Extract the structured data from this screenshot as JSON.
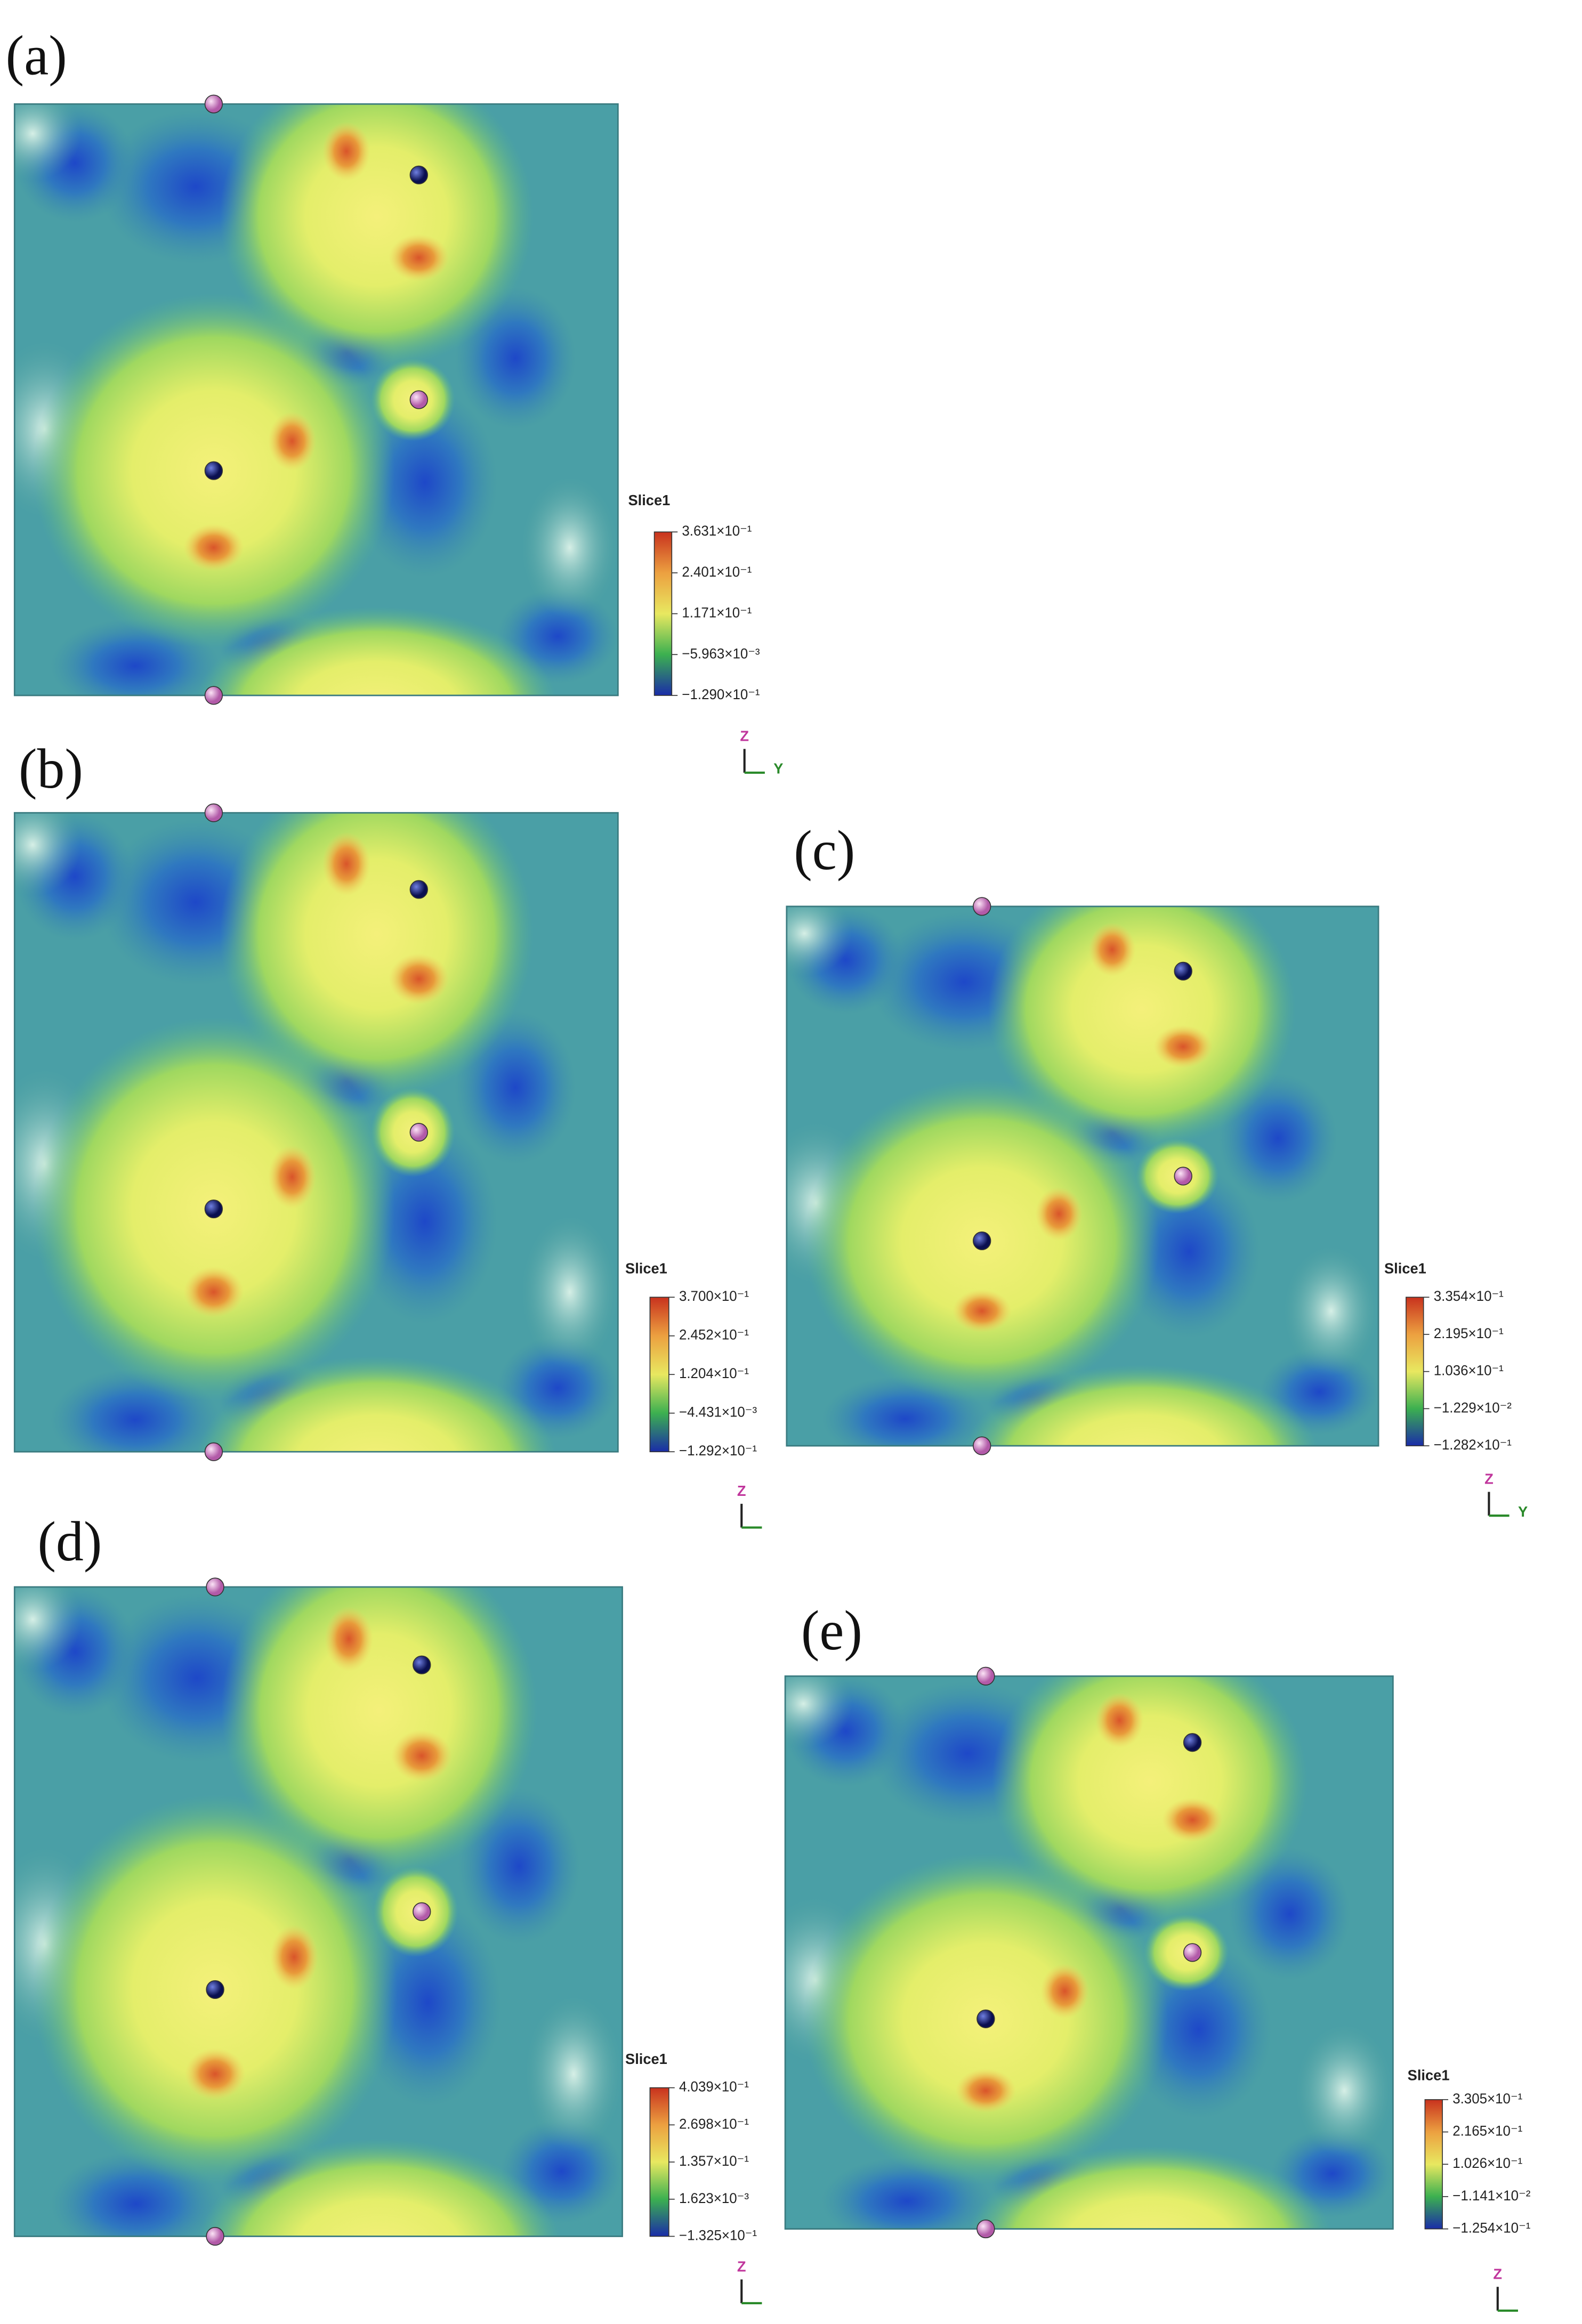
{
  "panels": [
    {
      "label": "(a)",
      "colorbar": {
        "title": "Slice1",
        "ticks": [
          "3.631×10⁻¹",
          "2.401×10⁻¹",
          "1.171×10⁻¹",
          "−5.963×10⁻³",
          "−1.290×10⁻¹"
        ]
      },
      "axes": [
        "Z",
        "Y"
      ]
    },
    {
      "label": "(b)",
      "colorbar": {
        "title": "Slice1",
        "ticks": [
          "3.700×10⁻¹",
          "2.452×10⁻¹",
          "1.204×10⁻¹",
          "−4.431×10⁻³",
          "−1.292×10⁻¹"
        ]
      },
      "axes": [
        "Z"
      ]
    },
    {
      "label": "(c)",
      "colorbar": {
        "title": "Slice1",
        "ticks": [
          "3.354×10⁻¹",
          "2.195×10⁻¹",
          "1.036×10⁻¹",
          "−1.229×10⁻²",
          "−1.282×10⁻¹"
        ]
      },
      "axes": [
        "Z",
        "Y"
      ]
    },
    {
      "label": "(d)",
      "colorbar": {
        "title": "Slice1",
        "ticks": [
          "4.039×10⁻¹",
          "2.698×10⁻¹",
          "1.357×10⁻¹",
          "1.623×10⁻³",
          "−1.325×10⁻¹"
        ]
      },
      "axes": [
        "Z"
      ]
    },
    {
      "label": "(e)",
      "colorbar": {
        "title": "Slice1",
        "ticks": [
          "3.305×10⁻¹",
          "2.165×10⁻¹",
          "1.026×10⁻¹",
          "−1.141×10⁻²",
          "−1.254×10⁻¹"
        ]
      },
      "axes": [
        "Z"
      ]
    }
  ]
}
